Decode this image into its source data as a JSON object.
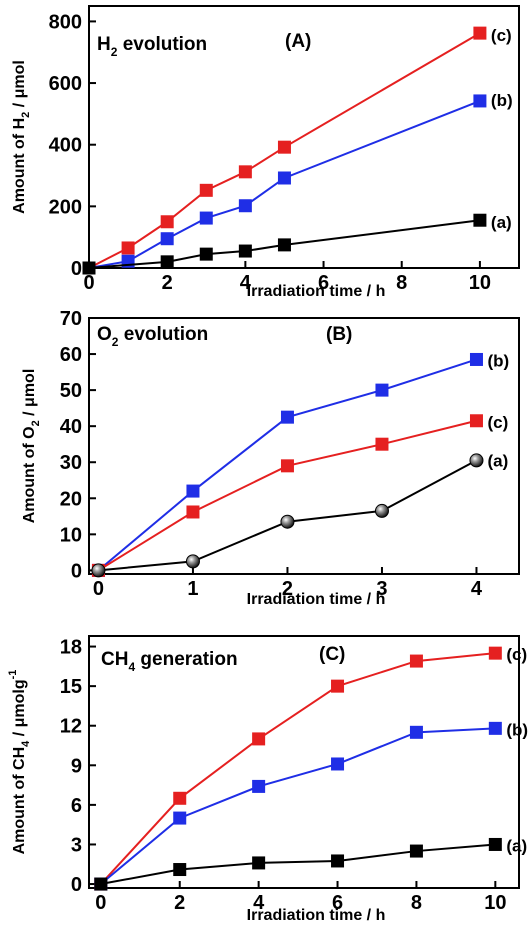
{
  "chart_data": [
    {
      "type": "line",
      "title_main": "H",
      "title_sub": "2",
      "title_rest": " evolution",
      "panel_tag": "(A)",
      "xlabel": "Irradiation time / h",
      "ylabel_main": "Amount of H",
      "ylabel_sub": "2",
      "ylabel_rest": " / μmol",
      "xlim": [
        0,
        11
      ],
      "ylim": [
        0,
        850
      ],
      "xticks": [
        0,
        2,
        4,
        6,
        8,
        10
      ],
      "yticks": [
        0,
        200,
        400,
        600,
        800
      ],
      "series": [
        {
          "name": "(c)",
          "color": "#e52020",
          "marker": "square",
          "x": [
            0,
            1,
            2,
            3,
            4,
            5,
            10
          ],
          "y": [
            0,
            65,
            150,
            252,
            312,
            392,
            762
          ]
        },
        {
          "name": "(b)",
          "color": "#1f2ee6",
          "marker": "square",
          "x": [
            0,
            1,
            2,
            3,
            4,
            5,
            10
          ],
          "y": [
            0,
            22,
            95,
            162,
            202,
            292,
            542
          ]
        },
        {
          "name": "(a)",
          "color": "#000000",
          "marker": "square",
          "x": [
            0,
            2,
            3,
            4,
            5,
            10
          ],
          "y": [
            0,
            20,
            45,
            55,
            75,
            155
          ]
        }
      ]
    },
    {
      "type": "line",
      "title_main": "O",
      "title_sub": "2",
      "title_rest": " evolution",
      "panel_tag": "(B)",
      "xlabel": "Irradiation time / h",
      "ylabel_main": "Amount of O",
      "ylabel_sub": "2",
      "ylabel_rest": " / μmol",
      "xlim": [
        -0.1,
        4.45
      ],
      "ylim": [
        -1,
        70
      ],
      "xticks": [
        0,
        1,
        2,
        3,
        4
      ],
      "yticks": [
        0,
        10,
        20,
        30,
        40,
        50,
        60,
        70
      ],
      "series": [
        {
          "name": "(b)",
          "color": "#1f2ee6",
          "marker": "square",
          "x": [
            0,
            1,
            2,
            3,
            4
          ],
          "y": [
            0,
            22,
            42.5,
            50,
            58.5
          ]
        },
        {
          "name": "(c)",
          "color": "#e52020",
          "marker": "square",
          "x": [
            0,
            1,
            2,
            3,
            4
          ],
          "y": [
            0,
            16.2,
            29,
            35,
            41.5
          ]
        },
        {
          "name": "(a)",
          "color": "#000000",
          "marker": "sphere",
          "x": [
            0,
            1,
            2,
            3,
            4
          ],
          "y": [
            0,
            2.5,
            13.5,
            16.5,
            30.5
          ]
        }
      ]
    },
    {
      "type": "line",
      "title_main": "CH",
      "title_sub": "4",
      "title_rest": " generation",
      "panel_tag": "(C)",
      "xlabel": "Irradiation time / h",
      "ylabel_main": "Amount of CH",
      "ylabel_sub": "4",
      "ylabel_rest": " / μmolg",
      "ylabel_sup": "-1",
      "xlim": [
        -0.3,
        10.6
      ],
      "ylim": [
        -0.3,
        18.8
      ],
      "xticks": [
        0,
        2,
        4,
        6,
        8,
        10
      ],
      "yticks": [
        0,
        3,
        6,
        9,
        12,
        15,
        18
      ],
      "series": [
        {
          "name": "(c)",
          "color": "#e52020",
          "marker": "square",
          "x": [
            0,
            2,
            4,
            6,
            8,
            10
          ],
          "y": [
            0,
            6.5,
            11,
            15,
            16.9,
            17.5
          ]
        },
        {
          "name": "(b)",
          "color": "#1f2ee6",
          "marker": "square",
          "x": [
            0,
            2,
            4,
            6,
            8,
            10
          ],
          "y": [
            0,
            5,
            7.4,
            9.1,
            11.5,
            11.8
          ]
        },
        {
          "name": "(a)",
          "color": "#000000",
          "marker": "square",
          "x": [
            0,
            2,
            4,
            6,
            8,
            10
          ],
          "y": [
            0,
            1.1,
            1.6,
            1.75,
            2.5,
            3
          ]
        }
      ]
    }
  ]
}
